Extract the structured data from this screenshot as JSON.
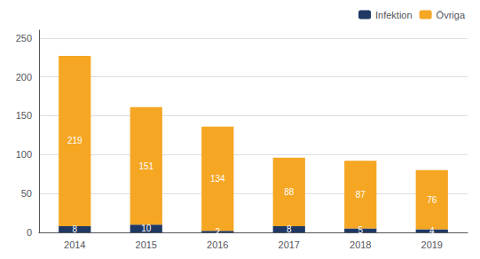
{
  "chart_data": {
    "type": "bar",
    "categories": [
      "2014",
      "2015",
      "2016",
      "2017",
      "2018",
      "2019"
    ],
    "series": [
      {
        "name": "Infektion",
        "color": "#1f3864",
        "values": [
          8,
          10,
          2,
          8,
          5,
          4
        ]
      },
      {
        "name": "Övriga",
        "color": "#f5a623",
        "values": [
          219,
          151,
          134,
          88,
          87,
          76
        ]
      }
    ],
    "stacked": true,
    "data_labels": true,
    "ylim": [
      0,
      260
    ],
    "yticks": [
      0,
      50,
      100,
      150,
      200,
      250
    ],
    "grid": true,
    "legend": "upper right"
  }
}
